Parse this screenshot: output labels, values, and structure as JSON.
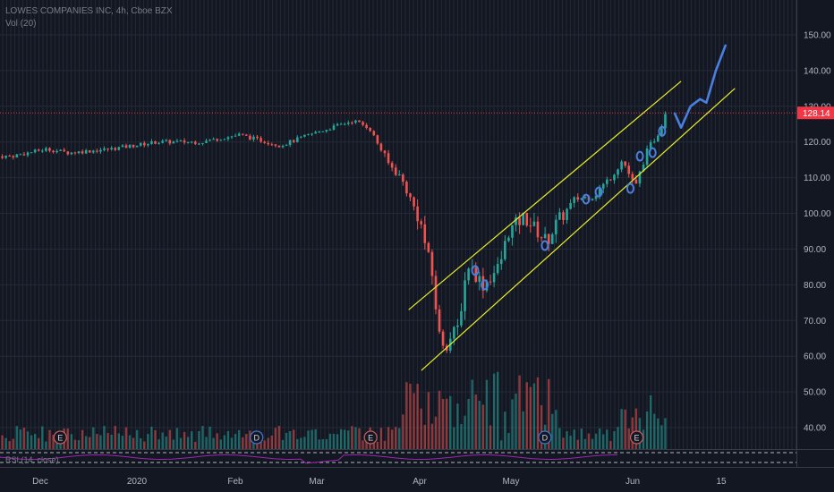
{
  "header": {
    "symbol_line": "LOWES COMPANIES INC, 4h, Cboe BZX",
    "volume_line": "Vol (20)"
  },
  "rsi_label": "RSI (14, close)",
  "chart_data": {
    "type": "candlestick",
    "title": "LOWES COMPANIES INC, 4h, Cboe BZX",
    "current_price": 128.14,
    "current_price_label": "128.14",
    "price_axis_ticks": [
      "150.00",
      "140.00",
      "130.00",
      "120.00",
      "110.00",
      "100.00",
      "90.00",
      "80.00",
      "70.00",
      "60.00",
      "50.00",
      "40.00"
    ],
    "time_axis_labels": [
      "Dec",
      "2020",
      "Feb",
      "Mar",
      "Apr",
      "May",
      "Jun",
      "15"
    ],
    "ylim": [
      34,
      155
    ],
    "event_markers": [
      {
        "label": "E",
        "date": "2019-11-20",
        "kind": "earnings"
      },
      {
        "label": "D",
        "date": "2020-01-21",
        "kind": "dividend"
      },
      {
        "label": "E",
        "date": "2020-02-26",
        "kind": "earnings"
      },
      {
        "label": "D",
        "date": "2020-04-21",
        "kind": "dividend"
      },
      {
        "label": "E",
        "date": "2020-05-20",
        "kind": "earnings"
      }
    ],
    "price_path": [
      {
        "date": "2019-11-04",
        "close": 116
      },
      {
        "date": "2019-11-15",
        "close": 118
      },
      {
        "date": "2019-11-22",
        "close": 117
      },
      {
        "date": "2019-12-05",
        "close": 118
      },
      {
        "date": "2019-12-20",
        "close": 120
      },
      {
        "date": "2020-01-03",
        "close": 120
      },
      {
        "date": "2020-01-15",
        "close": 122
      },
      {
        "date": "2020-01-28",
        "close": 119
      },
      {
        "date": "2020-02-06",
        "close": 122
      },
      {
        "date": "2020-02-20",
        "close": 126
      },
      {
        "date": "2020-02-25",
        "close": 124
      },
      {
        "date": "2020-03-02",
        "close": 114
      },
      {
        "date": "2020-03-06",
        "close": 110
      },
      {
        "date": "2020-03-12",
        "close": 98
      },
      {
        "date": "2020-03-16",
        "close": 82
      },
      {
        "date": "2020-03-18",
        "close": 66
      },
      {
        "date": "2020-03-20",
        "close": 63
      },
      {
        "date": "2020-03-24",
        "close": 68
      },
      {
        "date": "2020-03-27",
        "close": 86
      },
      {
        "date": "2020-04-01",
        "close": 80
      },
      {
        "date": "2020-04-06",
        "close": 85
      },
      {
        "date": "2020-04-09",
        "close": 95
      },
      {
        "date": "2020-04-14",
        "close": 99
      },
      {
        "date": "2020-04-21",
        "close": 92
      },
      {
        "date": "2020-04-24",
        "close": 97
      },
      {
        "date": "2020-04-30",
        "close": 104
      },
      {
        "date": "2020-05-06",
        "close": 105
      },
      {
        "date": "2020-05-11",
        "close": 110
      },
      {
        "date": "2020-05-15",
        "close": 115
      },
      {
        "date": "2020-05-19",
        "close": 107
      },
      {
        "date": "2020-05-22",
        "close": 116
      },
      {
        "date": "2020-05-27",
        "close": 124
      },
      {
        "date": "2020-05-29",
        "close": 130
      }
    ],
    "channel_lines": [
      {
        "from": {
          "date": "2020-03-09",
          "price": 73
        },
        "to": {
          "date": "2020-06-03",
          "price": 137
        }
      },
      {
        "from": {
          "date": "2020-03-13",
          "price": 56
        },
        "to": {
          "date": "2020-06-20",
          "price": 135
        }
      }
    ],
    "projection_path": [
      {
        "date": "2020-06-01",
        "price": 128
      },
      {
        "date": "2020-06-03",
        "price": 124
      },
      {
        "date": "2020-06-06",
        "price": 130
      },
      {
        "date": "2020-06-09",
        "price": 132
      },
      {
        "date": "2020-06-11",
        "price": 131
      },
      {
        "date": "2020-06-14",
        "price": 140
      },
      {
        "date": "2020-06-17",
        "price": 147
      }
    ],
    "colors": {
      "background": "#131722",
      "up": "#26a69a",
      "down": "#ef5350",
      "channel": "#e8ee2c",
      "projection": "#4a7fe0",
      "price_line": "#f23645",
      "rsi": "#9c27b0"
    }
  }
}
